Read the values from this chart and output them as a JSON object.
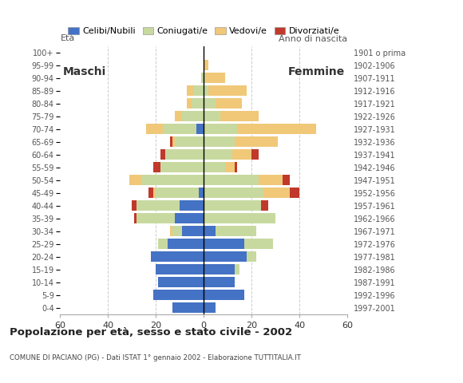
{
  "age_groups": [
    "0-4",
    "5-9",
    "10-14",
    "15-19",
    "20-24",
    "25-29",
    "30-34",
    "35-39",
    "40-44",
    "45-49",
    "50-54",
    "55-59",
    "60-64",
    "65-69",
    "70-74",
    "75-79",
    "80-84",
    "85-89",
    "90-94",
    "95-99",
    "100+"
  ],
  "birth_years": [
    "1997-2001",
    "1992-1996",
    "1987-1991",
    "1982-1986",
    "1977-1981",
    "1972-1976",
    "1967-1971",
    "1962-1966",
    "1957-1961",
    "1952-1956",
    "1947-1951",
    "1942-1946",
    "1937-1941",
    "1932-1936",
    "1927-1931",
    "1922-1926",
    "1917-1921",
    "1912-1916",
    "1907-1911",
    "1902-1906",
    "1901 o prima"
  ],
  "males": {
    "celibe": [
      13,
      21,
      19,
      20,
      22,
      15,
      9,
      12,
      10,
      2,
      0,
      0,
      0,
      0,
      3,
      0,
      0,
      0,
      0,
      0,
      0
    ],
    "coniugato": [
      0,
      0,
      0,
      0,
      0,
      4,
      4,
      16,
      18,
      18,
      26,
      18,
      16,
      12,
      14,
      9,
      5,
      4,
      1,
      0,
      0
    ],
    "vedovo": [
      0,
      0,
      0,
      0,
      0,
      0,
      1,
      0,
      0,
      1,
      5,
      0,
      0,
      1,
      7,
      3,
      2,
      3,
      0,
      0,
      0
    ],
    "divorziato": [
      0,
      0,
      0,
      0,
      0,
      0,
      0,
      1,
      2,
      2,
      0,
      3,
      2,
      1,
      0,
      0,
      0,
      0,
      0,
      0,
      0
    ]
  },
  "females": {
    "nubile": [
      5,
      17,
      13,
      13,
      18,
      17,
      5,
      0,
      0,
      0,
      0,
      0,
      0,
      0,
      0,
      0,
      0,
      0,
      0,
      0,
      0
    ],
    "coniugata": [
      0,
      0,
      0,
      2,
      4,
      12,
      17,
      30,
      24,
      25,
      23,
      9,
      12,
      13,
      14,
      7,
      5,
      2,
      1,
      0,
      0
    ],
    "vedova": [
      0,
      0,
      0,
      0,
      0,
      0,
      0,
      0,
      0,
      11,
      10,
      4,
      8,
      18,
      33,
      16,
      11,
      16,
      8,
      2,
      0
    ],
    "divorziata": [
      0,
      0,
      0,
      0,
      0,
      0,
      0,
      0,
      3,
      4,
      3,
      1,
      3,
      0,
      0,
      0,
      0,
      0,
      0,
      0,
      0
    ]
  },
  "colors": {
    "celibe": "#4472c4",
    "coniugato": "#c8d9a0",
    "vedovo": "#f0c878",
    "divorziato": "#c0392b"
  },
  "legend_labels": [
    "Celibi/Nubili",
    "Coniugati/e",
    "Vedovi/e",
    "Divorziati/e"
  ],
  "title": "Popolazione per età, sesso e stato civile - 2002",
  "subtitle": "COMUNE DI PACIANO (PG) - Dati ISTAT 1° gennaio 2002 - Elaborazione TUTTITALIA.IT",
  "label_eta": "Età",
  "label_maschi": "Maschi",
  "label_femmine": "Femmine",
  "label_anno": "Anno di nascita",
  "xlim": 60,
  "background_color": "#ffffff"
}
